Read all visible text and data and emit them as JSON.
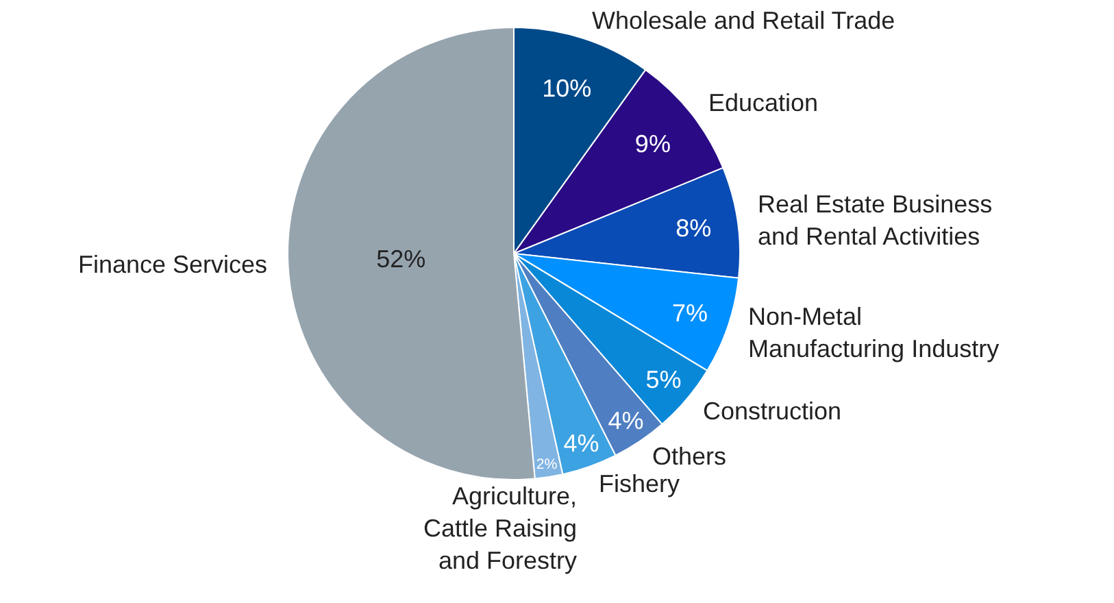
{
  "chart_data": {
    "type": "pie",
    "categories": [
      "Wholesale and Retail Trade",
      "Education",
      "Real Estate Business\nand Rental Activities",
      "Non-Metal\nManufacturing Industry",
      "Construction",
      "Others",
      "Fishery",
      "Agriculture,\nCattle Raising\nand Forestry",
      "Finance Services"
    ],
    "values": [
      10,
      9,
      8,
      7,
      5,
      4,
      4,
      2,
      52
    ],
    "value_labels": [
      "10%",
      "9%",
      "8%",
      "7%",
      "5%",
      "4%",
      "4%",
      "2%",
      "52%"
    ],
    "colors": [
      "#004a8a",
      "#2a0a85",
      "#0a4cb5",
      "#0090ff",
      "#0a88d8",
      "#4f7fc2",
      "#3da2e2",
      "#80b4e2",
      "#96a4ae"
    ],
    "legend": false
  }
}
